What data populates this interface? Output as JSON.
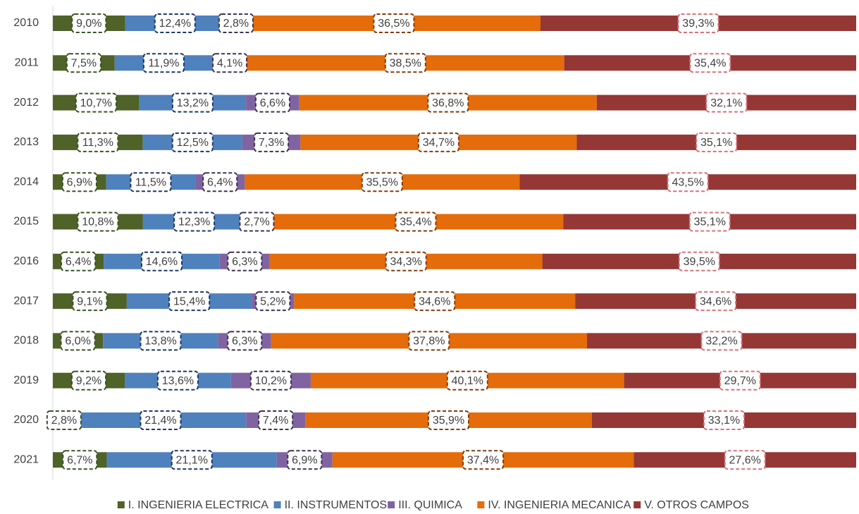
{
  "chart_data": {
    "type": "bar",
    "orientation": "horizontal",
    "stacking": "percent",
    "categories": [
      "2010",
      "2011",
      "2012",
      "2013",
      "2014",
      "2015",
      "2016",
      "2017",
      "2018",
      "2019",
      "2020",
      "2021"
    ],
    "legend": "bottom",
    "series": [
      {
        "name": "I. INGENIERIA ELECTRICA",
        "color": "#4f6228",
        "label_border": "#375623",
        "values": [
          9.0,
          7.5,
          10.7,
          11.3,
          6.9,
          10.8,
          6.4,
          9.1,
          6.0,
          9.2,
          2.8,
          6.7
        ],
        "value_labels": [
          "9,0%",
          "7,5%",
          "10,7%",
          "11,3%",
          "6,9%",
          "10,8%",
          "6,4%",
          "9,1%",
          "6,0%",
          "9,2%",
          "2,8%",
          "6,7%"
        ]
      },
      {
        "name": "II. INSTRUMENTOS",
        "color": "#4f81bd",
        "label_border": "#1f3864",
        "values": [
          12.4,
          11.9,
          13.2,
          12.5,
          11.5,
          12.3,
          14.6,
          15.4,
          13.8,
          13.6,
          21.4,
          21.1
        ],
        "value_labels": [
          "12,4%",
          "11,9%",
          "13,2%",
          "12,5%",
          "11,5%",
          "12,3%",
          "14,6%",
          "15,4%",
          "13,8%",
          "13,6%",
          "21,4%",
          "21,1%"
        ]
      },
      {
        "name": "III. QUIMICA",
        "color": "#8064a2",
        "label_border": "#403151",
        "values": [
          2.8,
          4.1,
          6.6,
          7.3,
          6.4,
          2.7,
          6.3,
          5.2,
          6.3,
          10.2,
          7.4,
          6.9
        ],
        "value_labels": [
          "2,8%",
          "4,1%",
          "6,6%",
          "7,3%",
          "6,4%",
          "2,7%",
          "6,3%",
          "5,2%",
          "6,3%",
          "10,2%",
          "7,4%",
          "6,9%"
        ]
      },
      {
        "name": "IV. INGENIERIA MECANICA",
        "color": "#e46c0a",
        "label_border": "#843c0c",
        "values": [
          36.5,
          38.5,
          36.8,
          34.7,
          35.5,
          35.4,
          34.3,
          34.6,
          37.8,
          40.1,
          35.9,
          37.4
        ],
        "value_labels": [
          "36,5%",
          "38,5%",
          "36,8%",
          "34,7%",
          "35,5%",
          "35,4%",
          "34,3%",
          "34,6%",
          "37,8%",
          "40,1%",
          "35,9%",
          "37,4%"
        ]
      },
      {
        "name": "V. OTROS CAMPOS",
        "color": "#953735",
        "label_border": "#d9707a",
        "values": [
          39.3,
          35.4,
          32.1,
          35.1,
          43.5,
          35.1,
          39.5,
          34.6,
          32.2,
          29.7,
          33.1,
          27.6
        ],
        "value_labels": [
          "39,3%",
          "35,4%",
          "32,1%",
          "35,1%",
          "43,5%",
          "35,1%",
          "39,5%",
          "34,6%",
          "32,2%",
          "29,7%",
          "33,1%",
          "27,6%"
        ]
      }
    ]
  }
}
